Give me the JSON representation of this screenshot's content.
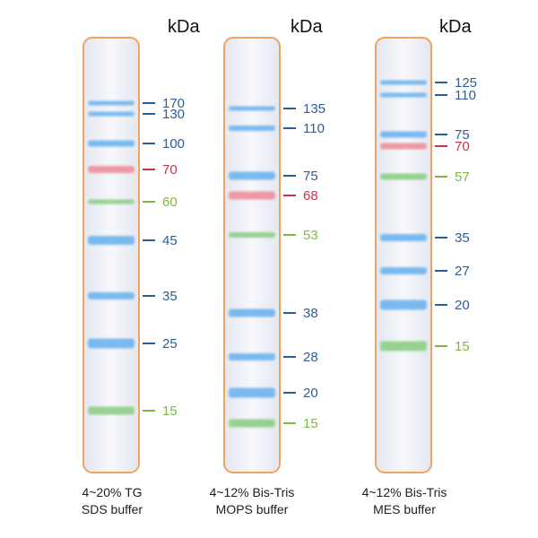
{
  "unit_label": "kDa",
  "colors": {
    "blue": "#6db4ee",
    "red": "#ee8f9b",
    "green": "#8ccf86",
    "lane_border": "#f0a35e",
    "label_blue": "#2d5d97",
    "label_red": "#c0394a",
    "label_green": "#7fb83f"
  },
  "lanes": [
    {
      "caption_line1": "4~20% TG",
      "caption_line2": "SDS buffer",
      "markers": [
        {
          "kda": "170",
          "color": "blue"
        },
        {
          "kda": "130",
          "color": "blue"
        },
        {
          "kda": "100",
          "color": "blue"
        },
        {
          "kda": "70",
          "color": "red"
        },
        {
          "kda": "60",
          "color": "green"
        },
        {
          "kda": "45",
          "color": "blue"
        },
        {
          "kda": "35",
          "color": "blue"
        },
        {
          "kda": "25",
          "color": "blue"
        },
        {
          "kda": "15",
          "color": "green"
        }
      ]
    },
    {
      "caption_line1": "4~12% Bis-Tris",
      "caption_line2": "MOPS buffer",
      "markers": [
        {
          "kda": "135",
          "color": "blue"
        },
        {
          "kda": "110",
          "color": "blue"
        },
        {
          "kda": "75",
          "color": "blue"
        },
        {
          "kda": "68",
          "color": "red"
        },
        {
          "kda": "53",
          "color": "green"
        },
        {
          "kda": "38",
          "color": "blue"
        },
        {
          "kda": "28",
          "color": "blue"
        },
        {
          "kda": "20",
          "color": "blue"
        },
        {
          "kda": "15",
          "color": "green"
        }
      ]
    },
    {
      "caption_line1": "4~12% Bis-Tris",
      "caption_line2": "MES buffer",
      "markers": [
        {
          "kda": "125",
          "color": "blue"
        },
        {
          "kda": "110",
          "color": "blue"
        },
        {
          "kda": "75",
          "color": "blue"
        },
        {
          "kda": "70",
          "color": "red"
        },
        {
          "kda": "57",
          "color": "green"
        },
        {
          "kda": "35",
          "color": "blue"
        },
        {
          "kda": "27",
          "color": "blue"
        },
        {
          "kda": "20",
          "color": "blue"
        },
        {
          "kda": "15",
          "color": "green"
        }
      ]
    }
  ]
}
